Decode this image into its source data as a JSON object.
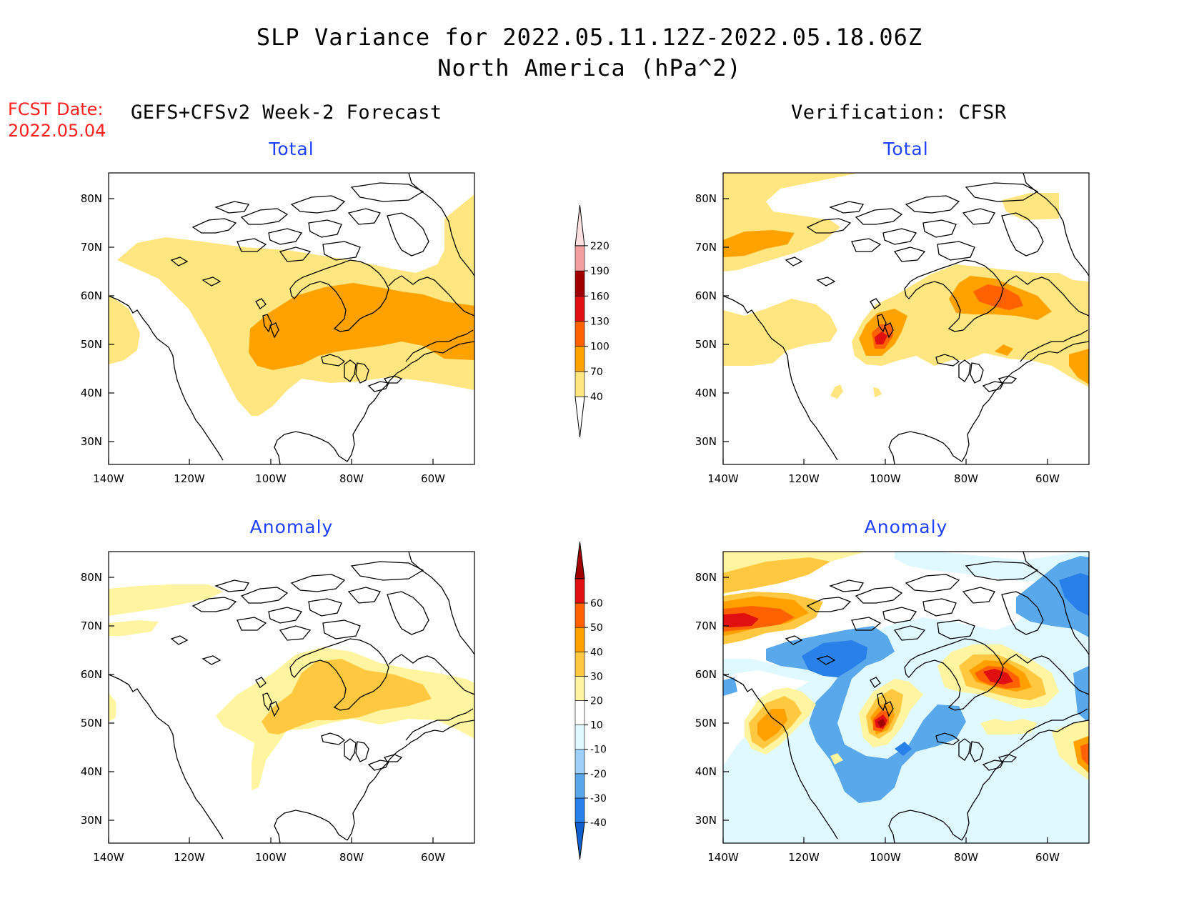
{
  "title": "SLP Variance for 2022.05.11.12Z-2022.05.18.06Z",
  "subtitle": "North America (hPa^2)",
  "fcst_date_label": "FCST Date:",
  "fcst_date_value": "2022.05.04",
  "forecast_header": "GEFS+CFSv2 Week-2 Forecast",
  "verification_header": "Verification: CFSR",
  "panels": [
    {
      "id": "fc-total",
      "title": "Total"
    },
    {
      "id": "vr-total",
      "title": "Total"
    },
    {
      "id": "fc-anom",
      "title": "Anomaly"
    },
    {
      "id": "vr-anom",
      "title": "Anomaly"
    }
  ],
  "axes": {
    "lon_ticks": [
      "140W",
      "120W",
      "100W",
      "80W",
      "60W"
    ],
    "lat_ticks": [
      "80N",
      "70N",
      "60N",
      "50N",
      "40N",
      "30N"
    ]
  },
  "colorbar_total": {
    "labels": [
      "40",
      "70",
      "100",
      "130",
      "160",
      "190",
      "220"
    ],
    "colors": [
      "#ffffff",
      "#ffe680",
      "#ffa200",
      "#ff6000",
      "#e01010",
      "#a00000",
      "#f5a0a0",
      "#fde0e0"
    ]
  },
  "colorbar_anomaly": {
    "labels": [
      "-40",
      "-30",
      "-20",
      "-10",
      "10",
      "20",
      "30",
      "40",
      "50",
      "60"
    ],
    "colors": [
      "#1060d0",
      "#2880e8",
      "#5aa8ec",
      "#a0d0f8",
      "#e0f8ff",
      "#ffffff",
      "#fff5a0",
      "#ffc840",
      "#ffa000",
      "#ff6000",
      "#e01010",
      "#a00000"
    ]
  }
}
